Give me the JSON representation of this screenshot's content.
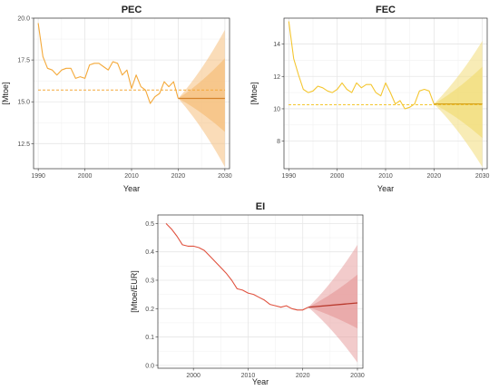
{
  "chart_data": [
    {
      "type": "line",
      "title": "PEC",
      "xlabel": "Year",
      "ylabel": "[Mtoe]",
      "xlim": [
        1989,
        2031
      ],
      "ylim": [
        11,
        20
      ],
      "xticks": [
        1990,
        2000,
        2010,
        2020,
        2030
      ],
      "yticks": [
        12.5,
        15.0,
        17.5,
        20.0
      ],
      "ytick_labels": [
        "12.5",
        "15.0",
        "17.5",
        "20.0"
      ],
      "colors": {
        "line": "#f4a93a",
        "forecast": "#d5832a",
        "band": "#f6c07e"
      },
      "x": [
        1990,
        1991,
        1992,
        1993,
        1994,
        1995,
        1996,
        1997,
        1998,
        1999,
        2000,
        2001,
        2002,
        2003,
        2004,
        2005,
        2006,
        2007,
        2008,
        2009,
        2010,
        2011,
        2012,
        2013,
        2014,
        2015,
        2016,
        2017,
        2018,
        2019,
        2020
      ],
      "values": [
        19.7,
        17.7,
        17.0,
        16.9,
        16.6,
        16.9,
        17.0,
        17.0,
        16.4,
        16.5,
        16.4,
        17.2,
        17.3,
        17.3,
        17.1,
        16.9,
        17.4,
        17.3,
        16.6,
        16.9,
        15.8,
        16.6,
        15.9,
        15.7,
        14.9,
        15.3,
        15.5,
        16.2,
        15.9,
        16.2,
        15.2
      ],
      "mean_line": 15.7,
      "forecast": {
        "x": [
          2020,
          2030
        ],
        "center": [
          15.2,
          15.2
        ],
        "band80": [
          [
            15.2,
            15.2
          ],
          [
            13.2,
            17.6
          ]
        ],
        "band95": [
          [
            15.2,
            15.2
          ],
          [
            11.1,
            19.3
          ]
        ]
      }
    },
    {
      "type": "line",
      "title": "FEC",
      "xlabel": "Year",
      "ylabel": "[Mtoe]",
      "xlim": [
        1989,
        2031
      ],
      "ylim": [
        6.3,
        15.6
      ],
      "xticks": [
        1990,
        2000,
        2010,
        2020,
        2030
      ],
      "yticks": [
        8,
        10,
        12,
        14
      ],
      "ytick_labels": [
        "8",
        "10",
        "12",
        "14"
      ],
      "colors": {
        "line": "#f4c630",
        "forecast": "#d6a21c",
        "band": "#f2dd7a"
      },
      "x": [
        1990,
        1991,
        1992,
        1993,
        1994,
        1995,
        1996,
        1997,
        1998,
        1999,
        2000,
        2001,
        2002,
        2003,
        2004,
        2005,
        2006,
        2007,
        2008,
        2009,
        2010,
        2011,
        2012,
        2013,
        2014,
        2015,
        2016,
        2017,
        2018,
        2019,
        2020
      ],
      "values": [
        15.4,
        13.1,
        12.1,
        11.2,
        11.0,
        11.1,
        11.4,
        11.3,
        11.1,
        11.0,
        11.2,
        11.6,
        11.2,
        11.0,
        11.6,
        11.3,
        11.5,
        11.5,
        11.0,
        10.8,
        11.6,
        11.0,
        10.3,
        10.5,
        10.0,
        10.1,
        10.3,
        11.1,
        11.2,
        11.1,
        10.3
      ],
      "mean_line": 10.25,
      "forecast": {
        "x": [
          2020,
          2030
        ],
        "center": [
          10.3,
          10.3
        ],
        "band80": [
          [
            10.3,
            10.3
          ],
          [
            8.2,
            12.6
          ]
        ],
        "band95": [
          [
            10.3,
            10.3
          ],
          [
            6.4,
            14.2
          ]
        ]
      }
    },
    {
      "type": "line",
      "title": "EI",
      "xlabel": "Year",
      "ylabel": "[Mtoe/EUR]",
      "xlim": [
        1993.5,
        2031
      ],
      "ylim": [
        -0.01,
        0.53
      ],
      "xticks": [
        2000,
        2010,
        2020,
        2030
      ],
      "yticks": [
        0.0,
        0.1,
        0.2,
        0.3,
        0.4,
        0.5
      ],
      "ytick_labels": [
        "0.0",
        "0.1",
        "0.2",
        "0.3",
        "0.4",
        "0.5"
      ],
      "colors": {
        "line": "#e0523f",
        "forecast": "#b93a2e",
        "band": "#e7a0a0"
      },
      "x": [
        1995,
        1996,
        1997,
        1998,
        1999,
        2000,
        2001,
        2002,
        2003,
        2004,
        2005,
        2006,
        2007,
        2008,
        2009,
        2010,
        2011,
        2012,
        2013,
        2014,
        2015,
        2016,
        2017,
        2018,
        2019,
        2020,
        2021
      ],
      "values": [
        0.5,
        0.48,
        0.455,
        0.425,
        0.42,
        0.42,
        0.415,
        0.405,
        0.385,
        0.365,
        0.345,
        0.325,
        0.3,
        0.27,
        0.265,
        0.255,
        0.25,
        0.24,
        0.23,
        0.215,
        0.21,
        0.205,
        0.21,
        0.2,
        0.195,
        0.195,
        0.205
      ],
      "forecast": {
        "x": [
          2021,
          2030
        ],
        "center": [
          0.205,
          0.22
        ],
        "band80": [
          [
            0.205,
            0.205
          ],
          [
            0.13,
            0.32
          ]
        ],
        "band95": [
          [
            0.205,
            0.205
          ],
          [
            0.01,
            0.425
          ]
        ]
      }
    }
  ]
}
